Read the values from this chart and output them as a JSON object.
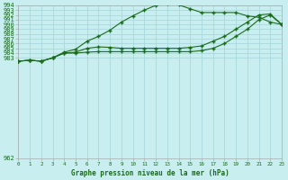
{
  "title": "Graphe pression niveau de la mer (hPa)",
  "background_color": "#c8eef0",
  "grid_color": "#a8d8dc",
  "line_color": "#1a6b1a",
  "xlim": [
    0,
    23
  ],
  "ylim": [
    962,
    994
  ],
  "xticks": [
    0,
    1,
    2,
    3,
    4,
    5,
    6,
    7,
    8,
    9,
    10,
    11,
    12,
    13,
    14,
    15,
    16,
    17,
    18,
    19,
    20,
    21,
    22,
    23
  ],
  "ytick_values": [
    962,
    983,
    984,
    985,
    986,
    987,
    988,
    989,
    990,
    991,
    992,
    993,
    994
  ],
  "ytick_labels": [
    "962",
    "983",
    "984",
    "985",
    "986",
    "987",
    "988",
    "989",
    "990",
    "991",
    "992",
    "993",
    "994"
  ],
  "line1_x": [
    0,
    1,
    2,
    3,
    4,
    5,
    6,
    7,
    8,
    9,
    10,
    11,
    12,
    13,
    14,
    15,
    16,
    17,
    18,
    19,
    20,
    21,
    22,
    23
  ],
  "line1_y": [
    982.3,
    982.5,
    982.3,
    983.0,
    984.2,
    984.8,
    986.5,
    987.5,
    988.8,
    990.5,
    991.8,
    993.0,
    994.0,
    994.3,
    994.1,
    993.3,
    992.5,
    992.5,
    992.5,
    992.5,
    991.8,
    991.5,
    990.5,
    990.0
  ],
  "line2_x": [
    0,
    1,
    2,
    3,
    4,
    5,
    6,
    7,
    8,
    9,
    10,
    11,
    12,
    13,
    14,
    15,
    16,
    17,
    18,
    19,
    20,
    21,
    22,
    23
  ],
  "line2_y": [
    982.3,
    982.5,
    982.3,
    983.0,
    984.0,
    984.2,
    985.0,
    985.3,
    985.2,
    985.0,
    985.0,
    985.0,
    985.0,
    985.0,
    985.0,
    985.2,
    985.5,
    986.5,
    987.5,
    989.0,
    990.5,
    992.0,
    992.2,
    990.0
  ],
  "line3_x": [
    0,
    1,
    2,
    3,
    4,
    5,
    6,
    7,
    8,
    9,
    10,
    11,
    12,
    13,
    14,
    15,
    16,
    17,
    18,
    19,
    20,
    21,
    22,
    23
  ],
  "line3_y": [
    982.3,
    982.5,
    982.3,
    983.0,
    984.0,
    984.0,
    984.2,
    984.3,
    984.3,
    984.3,
    984.3,
    984.3,
    984.3,
    984.3,
    984.3,
    984.3,
    984.5,
    985.0,
    986.0,
    987.5,
    989.0,
    991.0,
    992.0,
    990.0
  ]
}
